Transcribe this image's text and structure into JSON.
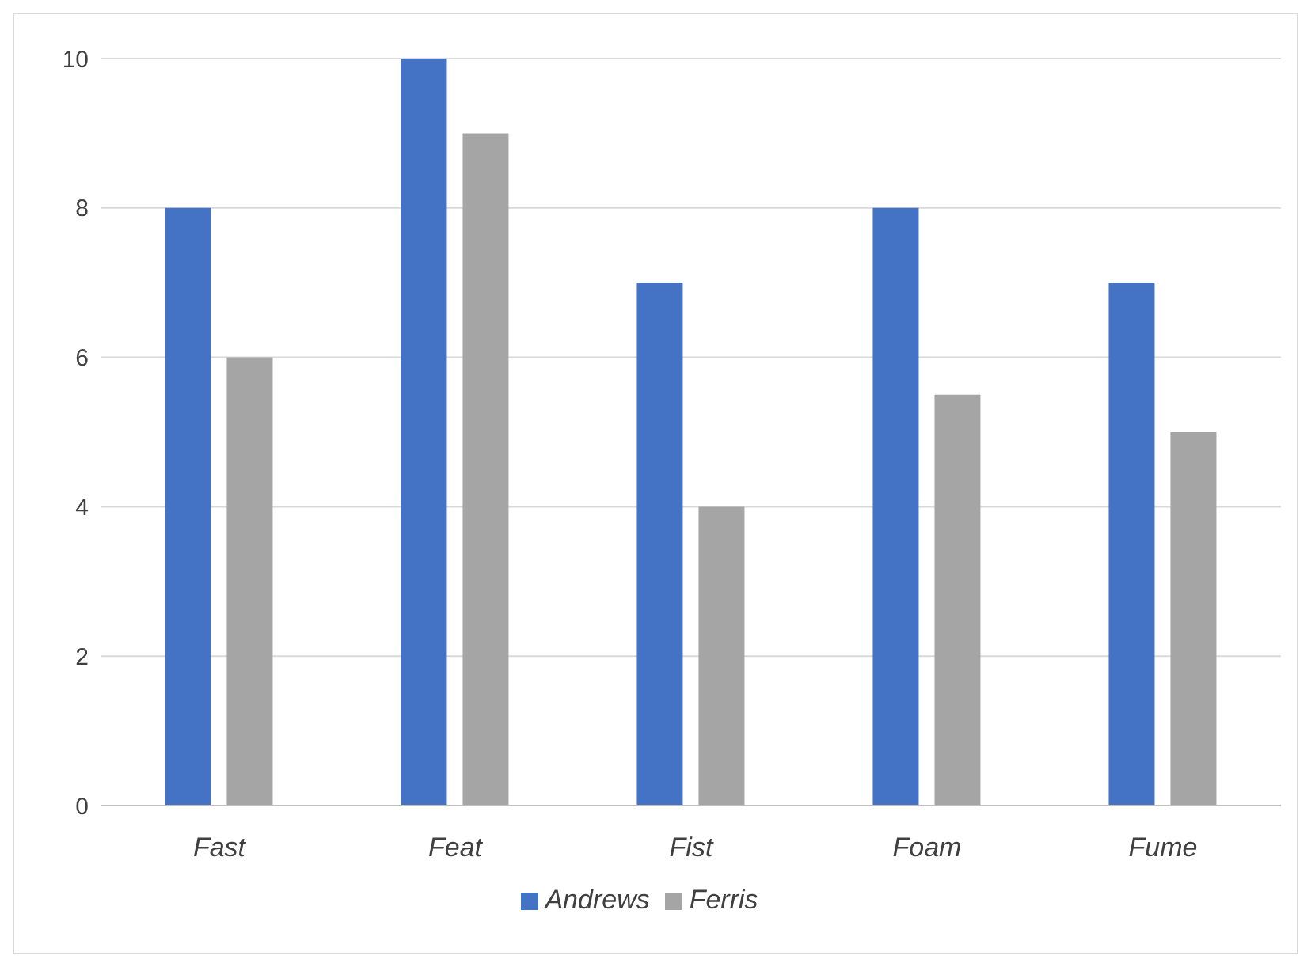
{
  "chart_data": {
    "type": "bar",
    "categories": [
      "Fast",
      "Feat",
      "Fist",
      "Foam",
      "Fume"
    ],
    "series": [
      {
        "name": "Andrews",
        "color": "#4472c4",
        "values": [
          8,
          10,
          7,
          8,
          7
        ]
      },
      {
        "name": "Ferris",
        "color": "#a5a5a5",
        "values": [
          6,
          9,
          4,
          5.5,
          5
        ]
      }
    ],
    "ylim": [
      0,
      10
    ],
    "yticks": [
      0,
      2,
      4,
      6,
      8,
      10
    ],
    "grid": "y",
    "legend": "bottom"
  }
}
